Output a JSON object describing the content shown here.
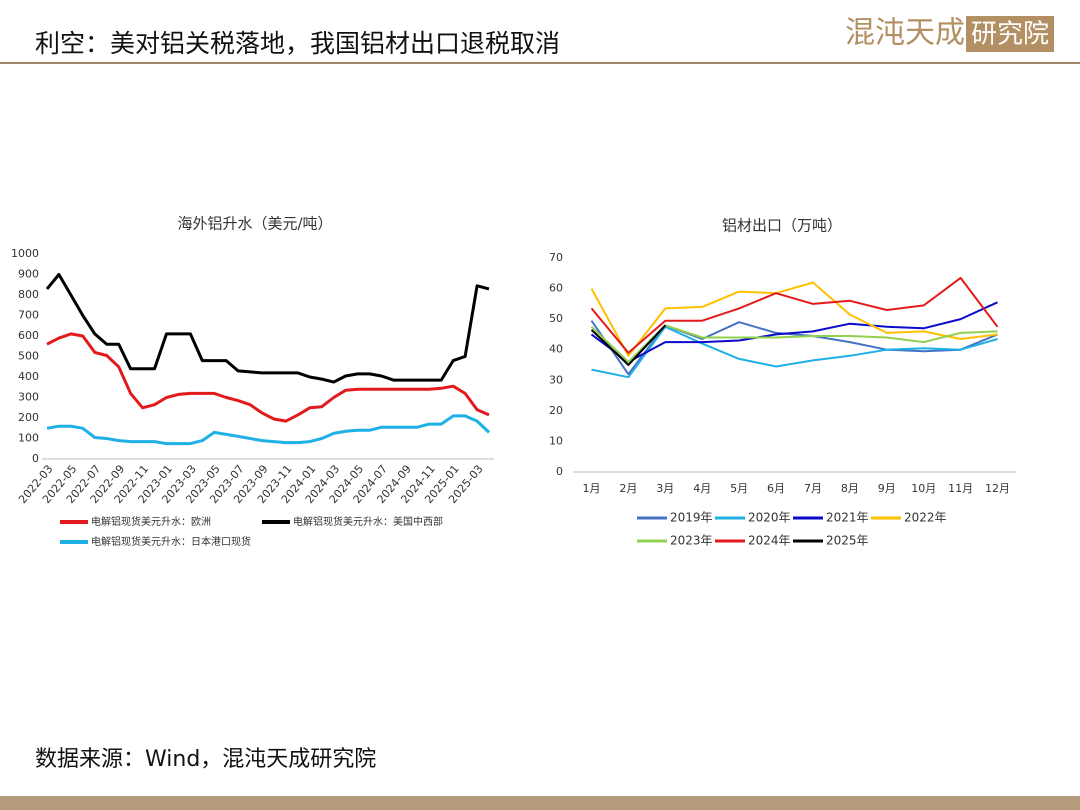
{
  "header": {
    "title": "利空：美对铝关税落地，我国铝材出口退税取消",
    "logo": "混沌天成",
    "logo_sub": "研究院"
  },
  "source": "数据来源：Wind，混沌天成研究院",
  "chart_data": [
    {
      "type": "line",
      "title": "海外铝升水（美元/吨）",
      "categories": [
        "2022-03",
        null,
        "2022-05",
        null,
        "2022-07",
        null,
        "2022-09",
        null,
        "2022-11",
        null,
        "2023-01",
        null,
        "2023-03",
        null,
        "2023-05",
        null,
        "2023-07",
        null,
        "2023-09",
        null,
        "2023-11",
        null,
        "2024-01",
        null,
        "2024-03",
        null,
        "2024-05",
        null,
        "2024-07",
        null,
        "2024-09",
        null,
        "2024-11",
        null,
        "2025-01",
        null,
        "2025-03",
        null
      ],
      "series": [
        {
          "name": "电解铝现货美元升水：欧洲",
          "color": "#e31a1c",
          "values": [
            560,
            590,
            610,
            600,
            520,
            505,
            450,
            320,
            250,
            265,
            300,
            315,
            320,
            320,
            320,
            300,
            285,
            265,
            225,
            195,
            185,
            215,
            250,
            255,
            300,
            335,
            340,
            340,
            340,
            340,
            340,
            340,
            340,
            345,
            355,
            320,
            240,
            215
          ]
        },
        {
          "name": "电解铝现货美元升水：美国中西部",
          "color": "#000000",
          "values": [
            830,
            900,
            800,
            700,
            610,
            560,
            560,
            440,
            440,
            440,
            610,
            610,
            610,
            480,
            480,
            480,
            430,
            425,
            420,
            420,
            420,
            420,
            400,
            390,
            375,
            405,
            415,
            415,
            405,
            385,
            385,
            385,
            385,
            385,
            480,
            500,
            845,
            830
          ]
        },
        {
          "name": "电解铝现货美元升水：日本港口现货",
          "color": "#1fb0e6",
          "values": [
            150,
            160,
            160,
            150,
            105,
            100,
            90,
            85,
            85,
            85,
            75,
            75,
            75,
            90,
            130,
            120,
            110,
            100,
            90,
            85,
            80,
            80,
            85,
            100,
            125,
            135,
            140,
            140,
            155,
            155,
            155,
            155,
            170,
            170,
            210,
            210,
            185,
            130
          ]
        }
      ],
      "ylim": [
        0,
        1000
      ],
      "yticks": [
        0,
        100,
        200,
        300,
        400,
        500,
        600,
        700,
        800,
        900,
        1000
      ],
      "grid": false
    },
    {
      "type": "line",
      "title": "铝材出口（万吨）",
      "categories": [
        "1月",
        "2月",
        "3月",
        "4月",
        "5月",
        "6月",
        "7月",
        "8月",
        "9月",
        "10月",
        "11月",
        "12月"
      ],
      "series": [
        {
          "name": "2019年",
          "color": "#4472c4",
          "values": [
            49.5,
            32,
            48,
            43.5,
            49,
            45.5,
            44.5,
            42.5,
            40,
            39.5,
            40,
            45
          ]
        },
        {
          "name": "2020年",
          "color": "#1fb0e6",
          "values": [
            33.5,
            31,
            47.5,
            42,
            37,
            34.5,
            36.5,
            38,
            40,
            40.5,
            40,
            43.5
          ]
        },
        {
          "name": "2021年",
          "color": "#0a0ac8",
          "values": [
            45,
            36,
            42.5,
            42.5,
            43,
            45,
            46,
            48.5,
            47.5,
            47,
            50,
            55.5
          ]
        },
        {
          "name": "2022年",
          "color": "#ffc000",
          "values": [
            60,
            38,
            53.5,
            54,
            59,
            58.5,
            62,
            51.5,
            45.5,
            46,
            43.5,
            45
          ]
        },
        {
          "name": "2023年",
          "color": "#92d050",
          "values": [
            47.5,
            36,
            48,
            44,
            44,
            44,
            44.5,
            44.5,
            44,
            42.5,
            45.5,
            46
          ]
        },
        {
          "name": "2024年",
          "color": "#e31a1c",
          "values": [
            53.5,
            39,
            49.5,
            49.5,
            53.5,
            58.5,
            55,
            56,
            53,
            54.5,
            63.5,
            47.5
          ]
        },
        {
          "name": "2025年",
          "color": "#000000",
          "values": [
            46.5,
            35,
            48,
            null,
            null,
            null,
            null,
            null,
            null,
            null,
            null,
            null
          ]
        }
      ],
      "ylim": [
        0,
        70
      ],
      "yticks": [
        0,
        10,
        20,
        30,
        40,
        50,
        60,
        70
      ],
      "grid": false
    }
  ]
}
